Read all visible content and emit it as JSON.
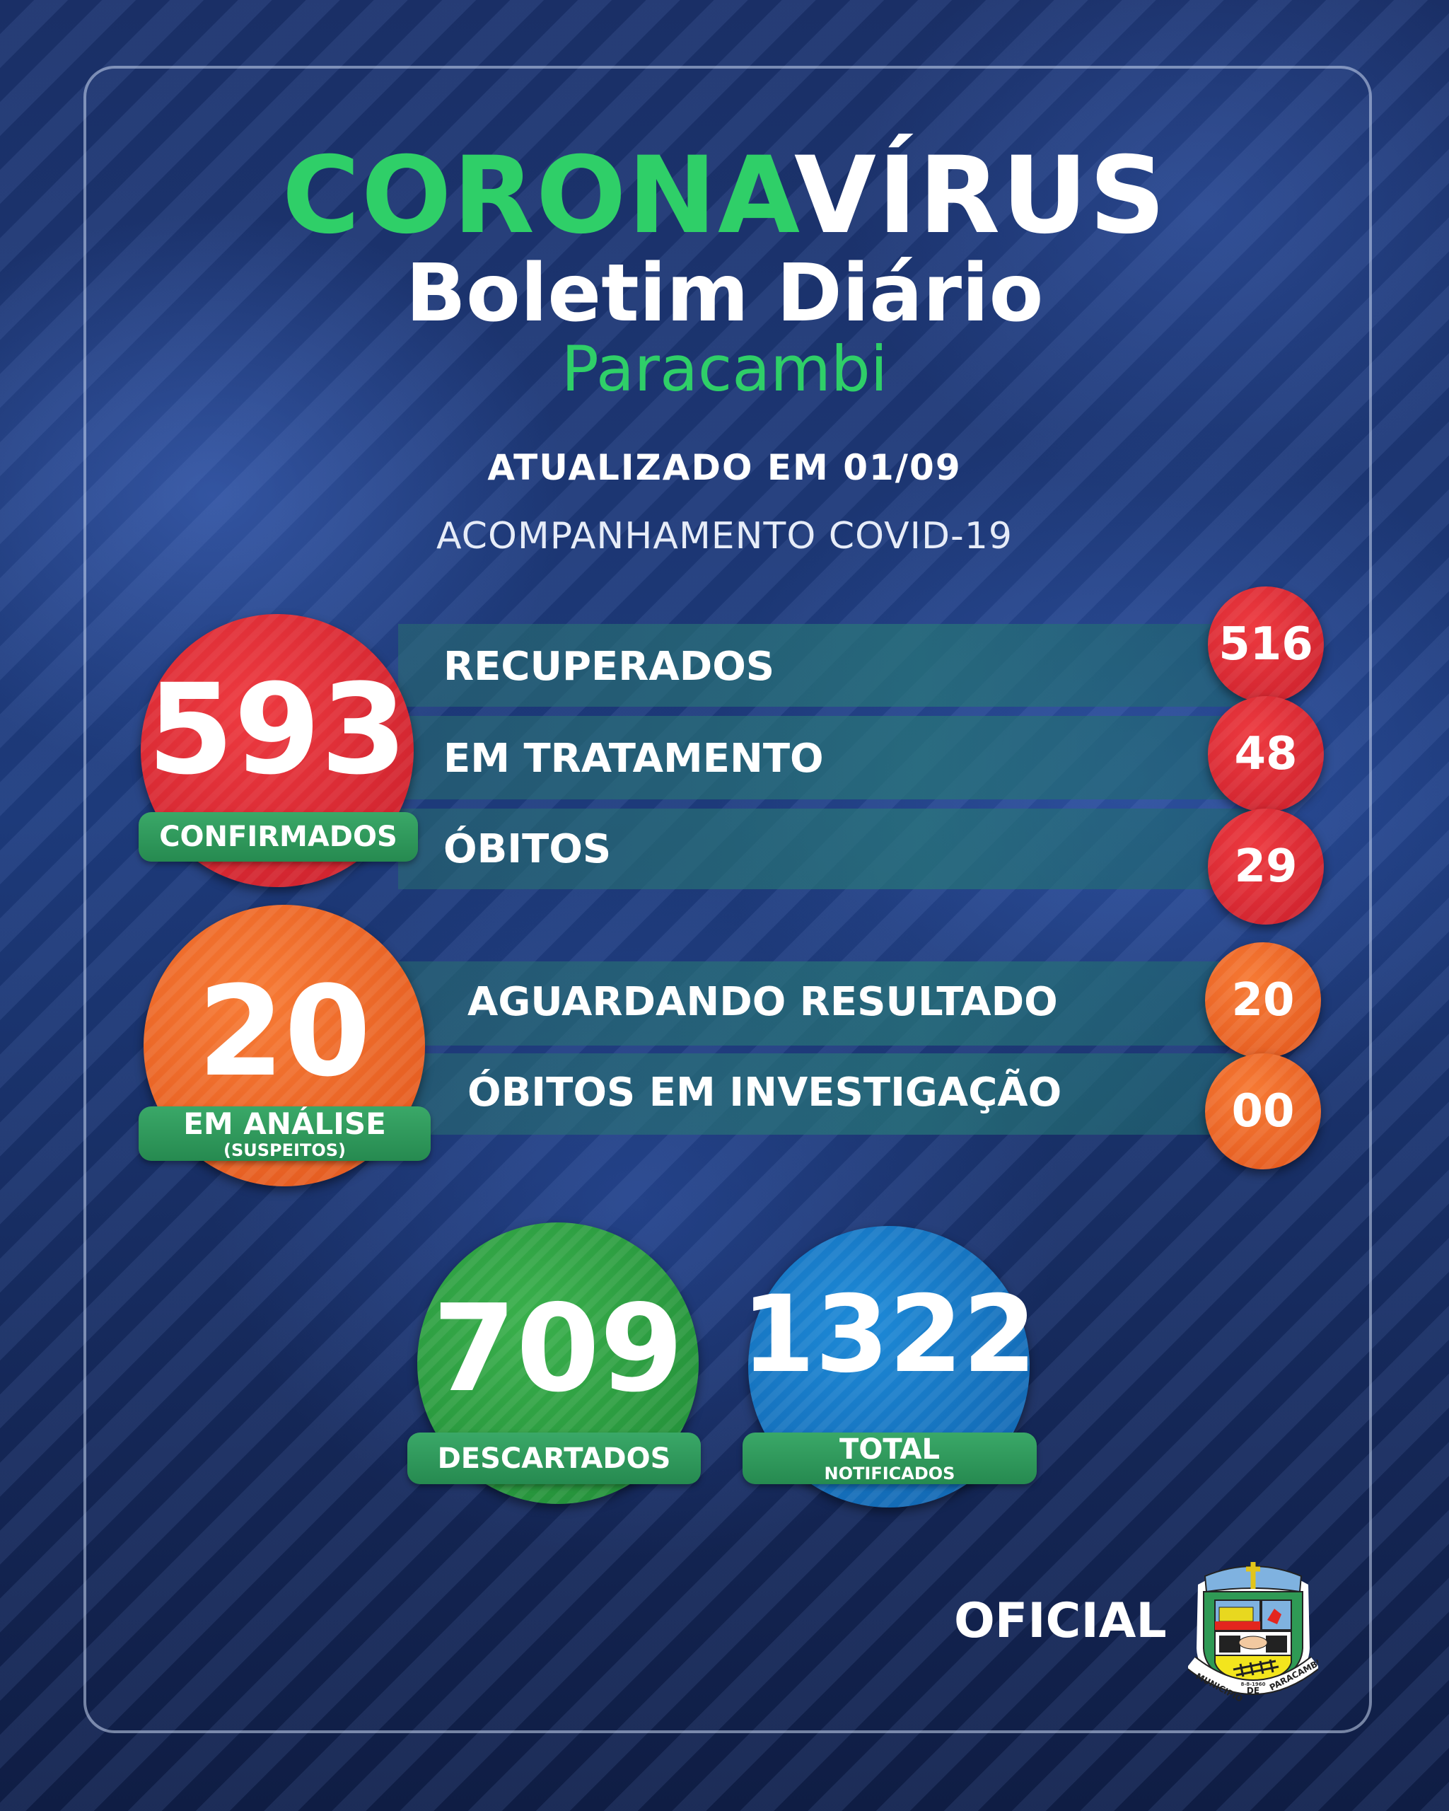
{
  "header": {
    "title_part1": "CORONA",
    "title_part2": "VÍRUS",
    "subtitle": "Boletim Diário",
    "city": "Paracambi",
    "updated": "ATUALIZADO EM 01/09",
    "tracking": "ACOMPANHAMENTO COVID-19"
  },
  "confirmed": {
    "value": "593",
    "label": "CONFIRMADOS",
    "rows": [
      {
        "label": "RECUPERADOS",
        "value": "516"
      },
      {
        "label": "EM TRATAMENTO",
        "value": "48"
      },
      {
        "label": "ÓBITOS",
        "value": "29"
      }
    ]
  },
  "analysis": {
    "value": "20",
    "label": "EM ANÁLISE",
    "sublabel": "(SUSPEITOS)",
    "rows": [
      {
        "label": "AGUARDANDO RESULTADO",
        "value": "20"
      },
      {
        "label": "ÓBITOS EM INVESTIGAÇÃO",
        "value": "00"
      }
    ]
  },
  "discarded": {
    "value": "709",
    "label": "DESCARTADOS"
  },
  "notified": {
    "value": "1322",
    "label": "TOTAL",
    "sublabel": "NOTIFICADOS"
  },
  "footer": {
    "official": "OFICIAL",
    "crest_text": [
      "MUNICIPIO",
      "DE",
      "PARACAMBI",
      "8-8-1960"
    ]
  },
  "colors": {
    "accent_green": "#2fcf68",
    "confirmed_red": "#d8262f",
    "analysis_orange": "#ec6424",
    "discarded_green": "#2a9a40",
    "notified_blue": "#1574c0",
    "background_navy": "#1a2f66"
  }
}
